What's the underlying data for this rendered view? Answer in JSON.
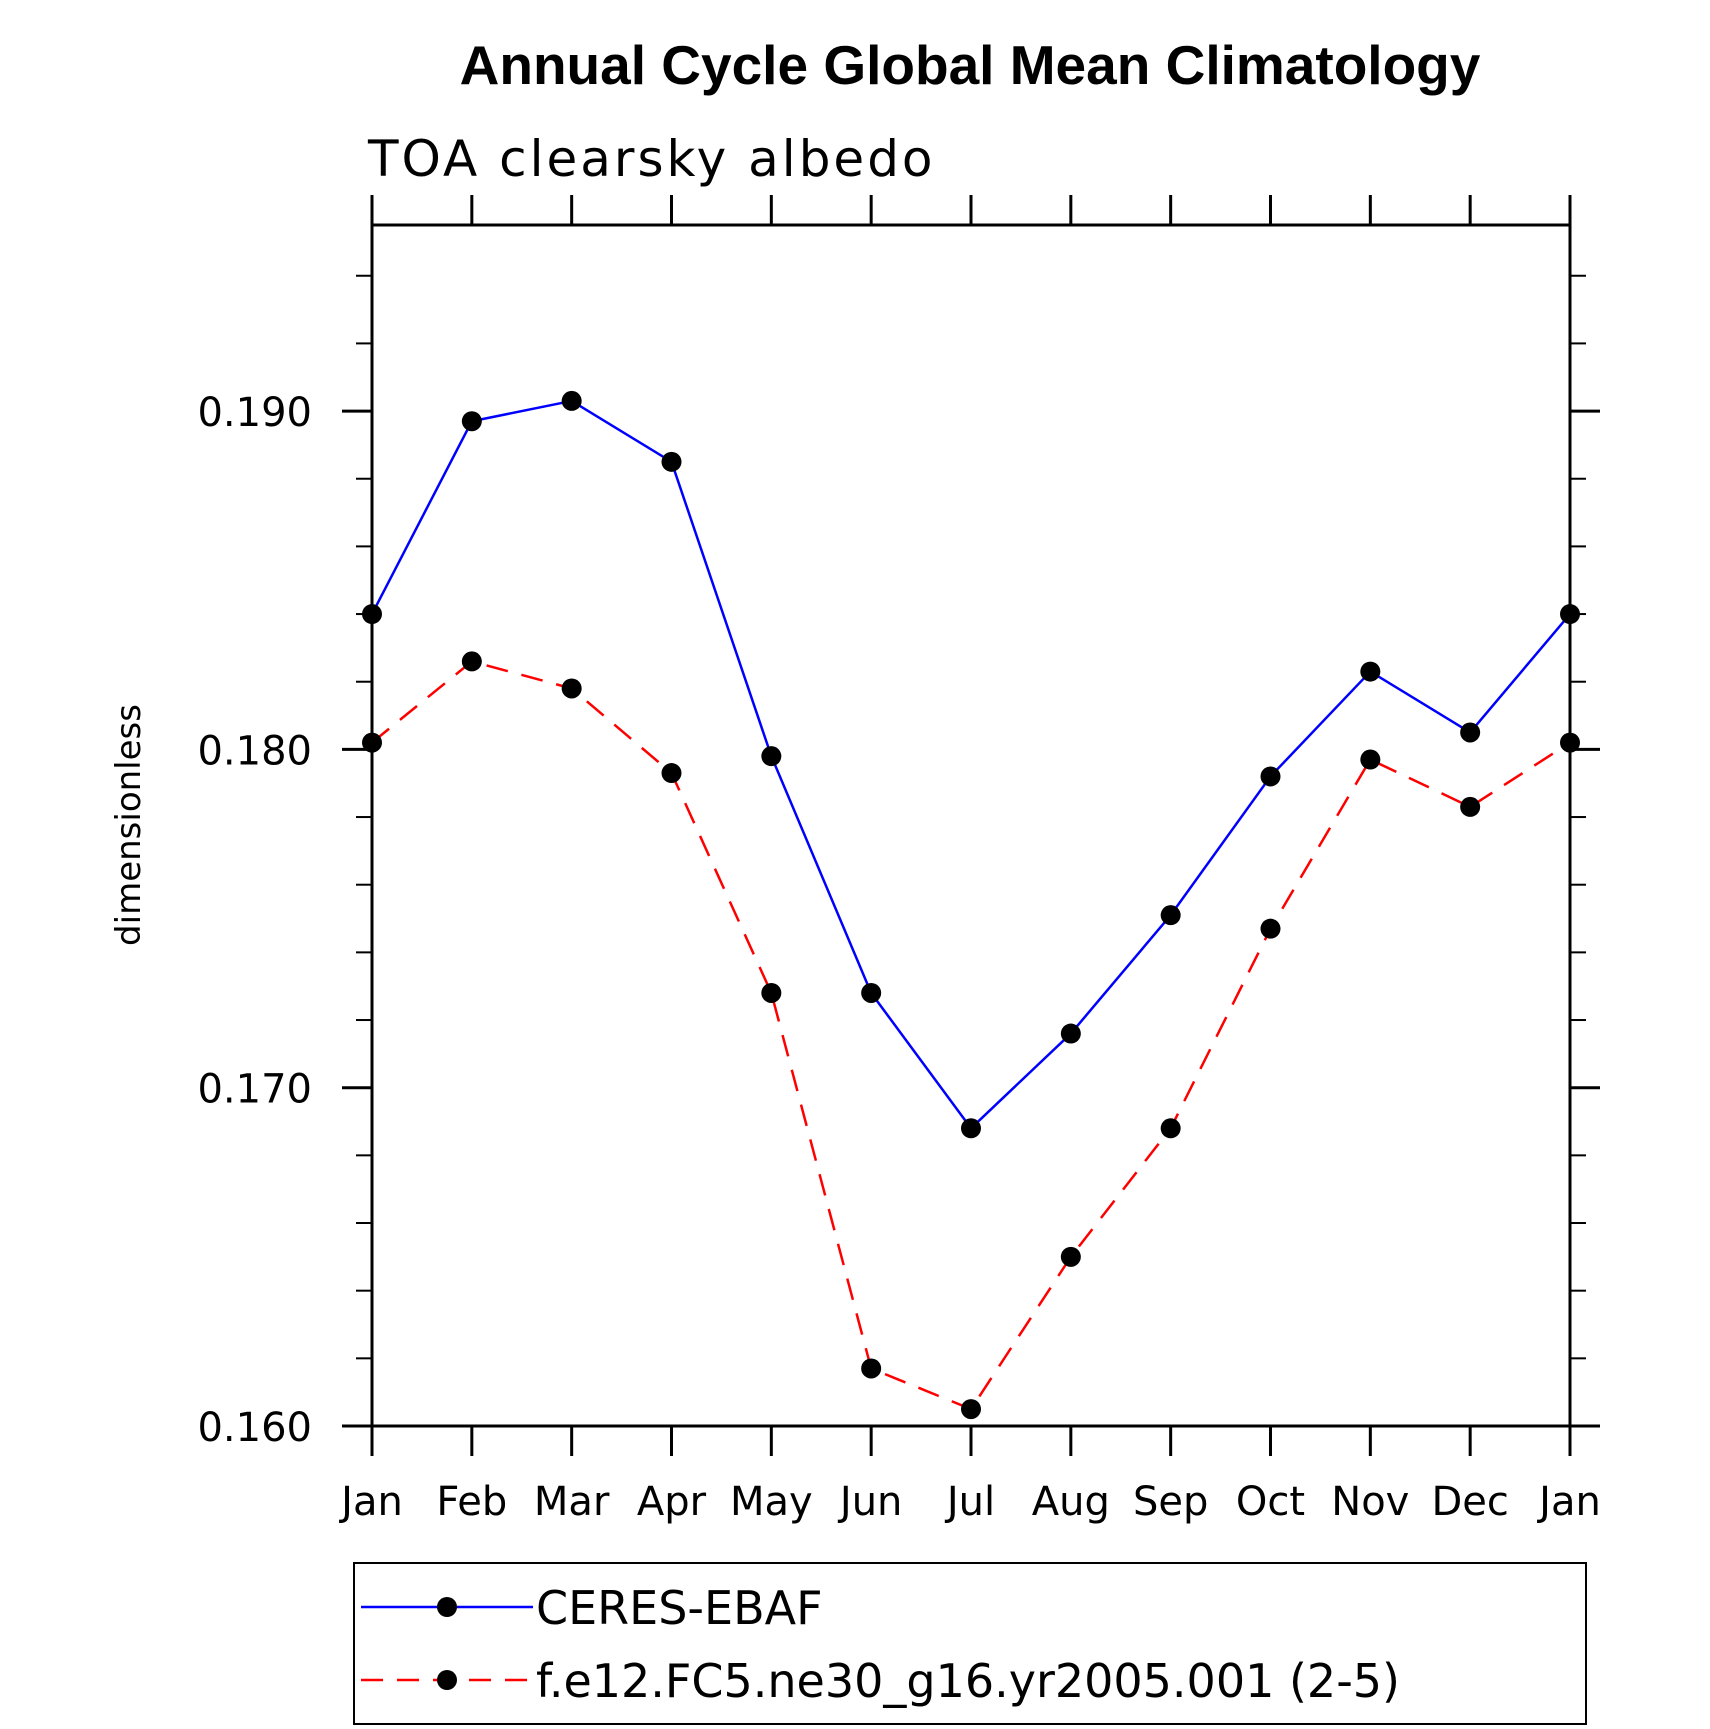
{
  "chart_data": {
    "type": "line",
    "title": "Annual Cycle Global Mean Climatology",
    "subtitle": "TOA clearsky albedo",
    "ylabel": "dimensionless",
    "xlabel": "",
    "categories": [
      "Jan",
      "Feb",
      "Mar",
      "Apr",
      "May",
      "Jun",
      "Jul",
      "Aug",
      "Sep",
      "Oct",
      "Nov",
      "Dec",
      "Jan"
    ],
    "ylim": [
      0.16,
      0.1955
    ],
    "yticks": [
      0.16,
      0.17,
      0.18,
      0.19
    ],
    "ytick_labels": [
      "0.160",
      "0.170",
      "0.180",
      "0.190"
    ],
    "series": [
      {
        "name": "CERES-EBAF",
        "color": "#0000ff",
        "dash": "solid",
        "values": [
          0.184,
          0.1897,
          0.1903,
          0.1885,
          0.1798,
          0.1728,
          0.1688,
          0.1716,
          0.1751,
          0.1792,
          0.1823,
          0.1805,
          0.184
        ]
      },
      {
        "name": "f.e12.FC5.ne30_g16.yr2005.001 (2-5)",
        "color": "#ff0000",
        "dash": "dashed",
        "values": [
          0.1802,
          0.1826,
          0.1818,
          0.1793,
          0.1728,
          0.1617,
          0.1605,
          0.165,
          0.1688,
          0.1747,
          0.1797,
          0.1783,
          0.1802
        ]
      }
    ],
    "marker": "filled-circle",
    "marker_color": "#000000",
    "legend_position": "bottom"
  }
}
